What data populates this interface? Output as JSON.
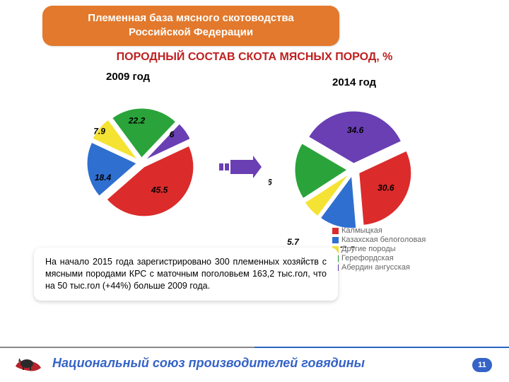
{
  "header": {
    "line1": "Племенная база мясного скотоводства",
    "line2": "Российской Федерации",
    "bg_color": "#e2792c",
    "text_color": "#ffffff"
  },
  "subtitle": {
    "text": "ПОРОДНЫЙ СОСТАВ СКОТА МЯСНЫХ ПОРОД, %",
    "color": "#bf1f1f"
  },
  "chart_2009": {
    "title": "2009 год",
    "type": "pie",
    "exploded": true,
    "slices": [
      {
        "label": "45.5",
        "value": 45.5,
        "color": "#dc2b2b"
      },
      {
        "label": "18.4",
        "value": 18.4,
        "color": "#2f6fd0"
      },
      {
        "label": "7.9",
        "value": 7.9,
        "color": "#f4e333"
      },
      {
        "label": "22.2",
        "value": 22.2,
        "color": "#2aa43a"
      },
      {
        "label": "6",
        "value": 6.0,
        "color": "#6a3fb3"
      }
    ],
    "label_fontsize": 12
  },
  "chart_2014": {
    "title": "2014 год",
    "type": "pie",
    "exploded": true,
    "slices": [
      {
        "label": "30.6",
        "value": 30.6,
        "color": "#dc2b2b"
      },
      {
        "label": "11.5",
        "value": 11.5,
        "color": "#2f6fd0"
      },
      {
        "label": "5.7",
        "value": 5.7,
        "color": "#f4e333"
      },
      {
        "label": "17.6",
        "value": 17.6,
        "color": "#2aa43a"
      },
      {
        "label": "34.6",
        "value": 34.6,
        "color": "#6a3fb3"
      }
    ],
    "label_fontsize": 12
  },
  "arrow": {
    "color": "#6a3fb3"
  },
  "legend": {
    "items": [
      {
        "label": "Калмыцкая",
        "color": "#dc2b2b"
      },
      {
        "label": "Казахская белоголовая",
        "color": "#2f6fd0"
      },
      {
        "label": "Другие породы",
        "color": "#f4e333"
      },
      {
        "label": "Герефордская",
        "color": "#2aa43a"
      },
      {
        "label": "Абердин ангусская",
        "color": "#6a3fb3"
      }
    ],
    "fontsize": 11,
    "text_color": "#666666"
  },
  "note": {
    "text": "На начало 2015 года зарегистрировано 300 племенных хозяйств с мясными породами КРС с маточным поголовьем 163,2 тыс.гол, что на 50 тыс.гол (+44%) больше 2009 года."
  },
  "footer": {
    "text": "Национальный союз производителей говядины",
    "text_color": "#3563c7",
    "page_number": "11",
    "badge_bg": "#3563c7",
    "logo_colors": {
      "ribbon": "#b5232b",
      "cow": "#2a2a2a"
    }
  },
  "background_color": "#ffffff"
}
